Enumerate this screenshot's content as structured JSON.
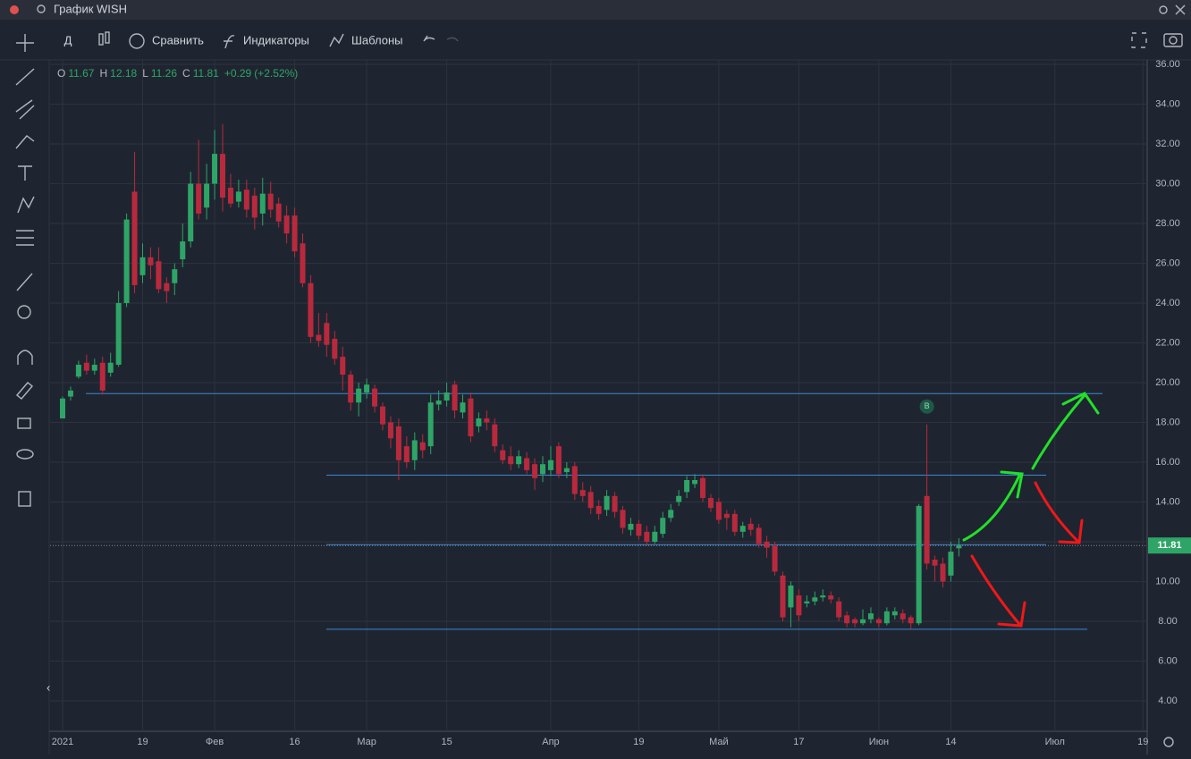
{
  "ui": {
    "window_title": "График WISH",
    "interval": "Д",
    "compare": "Сравнить",
    "indicators": "Индикаторы",
    "templates": "Шаблоны"
  },
  "legend": {
    "o": "O",
    "h": "H",
    "l": "L",
    "c": "C",
    "change": "+0.29",
    "change_pct": "(+2.52%)"
  },
  "chart_data": {
    "type": "candlestick",
    "categories": [
      "2021",
      null,
      null,
      null,
      null,
      null,
      null,
      null,
      null,
      null,
      "19",
      null,
      null,
      null,
      null,
      null,
      null,
      null,
      null,
      "Фев",
      null,
      null,
      null,
      null,
      null,
      null,
      null,
      null,
      null,
      "16",
      null,
      null,
      null,
      null,
      null,
      null,
      null,
      null,
      "Мар",
      null,
      null,
      null,
      null,
      null,
      null,
      null,
      null,
      null,
      "15",
      null,
      null,
      null,
      null,
      null,
      null,
      null,
      null,
      null,
      null,
      null,
      null,
      "Апр",
      null,
      null,
      null,
      null,
      null,
      null,
      null,
      null,
      null,
      null,
      "19",
      null,
      null,
      null,
      null,
      null,
      null,
      null,
      null,
      null,
      "Май",
      null,
      null,
      null,
      null,
      null,
      null,
      null,
      null,
      null,
      "17",
      null,
      null,
      null,
      null,
      null,
      null,
      null,
      null,
      null,
      "Июн",
      null,
      null,
      null,
      null,
      null,
      null,
      null,
      null,
      "14",
      null,
      null,
      null,
      null,
      null,
      null,
      null,
      null,
      null,
      null,
      null,
      null,
      "Июл",
      null,
      null,
      null,
      null,
      null,
      null,
      null,
      null,
      null,
      null,
      "19"
    ],
    "open": [
      18.2,
      19.3,
      20.3,
      21.0,
      20.6,
      21.0,
      20.5,
      20.9,
      24.0,
      29.6,
      25.4,
      26.3,
      26.1,
      25.0,
      25.0,
      26.2,
      27.1,
      30.0,
      28.8,
      30.0,
      31.5,
      29.8,
      29.1,
      29.7,
      29.4,
      28.5,
      29.5,
      29.0,
      28.4,
      28.4,
      27.0,
      25.0,
      22.4,
      23.0,
      22.2,
      21.3,
      20.4,
      19.0,
      19.5,
      19.7,
      18.8,
      18.0,
      17.8,
      16.8,
      16.1,
      17.0,
      16.8,
      18.9,
      19.1,
      19.9,
      18.5,
      19.2,
      17.8,
      18.2,
      17.9,
      16.6,
      16.3,
      15.9,
      16.2,
      15.9,
      15.4,
      15.6,
      16.8,
      15.5,
      15.8,
      14.6,
      14.5,
      13.8,
      13.6,
      14.3,
      13.6,
      12.6,
      12.9,
      12.5,
      12.0,
      12.4,
      13.2,
      14.0,
      14.5,
      14.9,
      15.2,
      14.2,
      14.0,
      13.4,
      13.4,
      12.5,
      12.9,
      12.7,
      12.0,
      11.8,
      10.3,
      8.7,
      9.3,
      8.9,
      9.0,
      9.2,
      9.3,
      9.0,
      8.3,
      8.1,
      7.9,
      8.1,
      8.1,
      7.9,
      8.3,
      8.4,
      8.2,
      7.9,
      14.3,
      11.1,
      10.9,
      10.3,
      11.67,
      null,
      null,
      null,
      null,
      null,
      null,
      null,
      null,
      null,
      null,
      null,
      null,
      null,
      null,
      null,
      null,
      null,
      null,
      null,
      null,
      null,
      null,
      null
    ],
    "high": [
      19.3,
      19.8,
      21.1,
      21.4,
      21.2,
      21.3,
      21.5,
      24.6,
      28.5,
      31.6,
      27.0,
      26.8,
      26.8,
      25.3,
      26.0,
      28.0,
      30.6,
      32.2,
      31.0,
      32.7,
      33.0,
      30.5,
      30.2,
      30.2,
      29.8,
      30.3,
      30.1,
      29.3,
      28.9,
      28.8,
      27.5,
      25.4,
      23.5,
      23.5,
      22.6,
      21.8,
      20.6,
      20.0,
      20.2,
      19.9,
      19.0,
      18.3,
      18.2,
      17.3,
      17.5,
      17.4,
      19.4,
      19.6,
      20.0,
      20.1,
      19.4,
      19.5,
      18.5,
      18.6,
      18.2,
      16.9,
      16.8,
      16.6,
      16.5,
      16.2,
      16.3,
      16.8,
      17.0,
      16.0,
      16.0,
      15.0,
      14.8,
      14.1,
      14.6,
      14.5,
      13.8,
      13.2,
      13.1,
      12.8,
      12.8,
      13.5,
      13.9,
      14.6,
      15.3,
      15.4,
      15.4,
      14.4,
      14.2,
      13.6,
      13.6,
      13.0,
      13.2,
      12.9,
      12.3,
      12.0,
      10.5,
      10.0,
      9.6,
      9.3,
      9.5,
      9.6,
      9.5,
      9.2,
      8.5,
      8.2,
      8.6,
      8.7,
      8.2,
      8.7,
      8.7,
      8.6,
      8.3,
      13.9,
      17.9,
      11.3,
      11.2,
      12.0,
      12.18,
      null,
      null,
      null,
      null,
      null,
      null,
      null,
      null,
      null,
      null,
      null,
      null,
      null,
      null,
      null,
      null,
      null,
      null,
      null,
      null,
      null,
      null,
      null
    ],
    "low": [
      18.2,
      19.1,
      20.2,
      20.4,
      20.4,
      19.4,
      20.3,
      20.8,
      23.8,
      24.5,
      25.0,
      25.2,
      24.5,
      24.0,
      24.4,
      25.8,
      26.8,
      28.2,
      28.2,
      29.2,
      28.6,
      28.8,
      28.8,
      28.3,
      27.7,
      27.9,
      28.3,
      27.8,
      27.0,
      26.3,
      24.8,
      22.0,
      21.8,
      21.3,
      20.9,
      19.6,
      18.6,
      18.3,
      19.2,
      18.5,
      17.6,
      16.7,
      15.1,
      15.7,
      15.6,
      16.2,
      16.4,
      18.6,
      18.8,
      18.2,
      18.2,
      17.0,
      17.5,
      17.6,
      16.5,
      15.9,
      15.6,
      15.7,
      15.4,
      14.6,
      15.0,
      15.3,
      15.2,
      15.2,
      14.1,
      14.0,
      13.4,
      13.1,
      13.3,
      13.2,
      12.4,
      12.3,
      12.1,
      11.8,
      11.9,
      12.2,
      13.0,
      13.8,
      14.2,
      14.7,
      14.0,
      13.5,
      12.9,
      12.6,
      12.3,
      12.2,
      12.3,
      11.7,
      11.2,
      10.3,
      8.0,
      7.7,
      8.0,
      8.7,
      8.8,
      9.0,
      8.9,
      8.0,
      7.7,
      7.7,
      7.8,
      7.9,
      7.7,
      7.8,
      8.1,
      7.9,
      7.6,
      7.8,
      10.6,
      10.0,
      9.7,
      10.0,
      11.26,
      null,
      null,
      null,
      null,
      null,
      null,
      null,
      null,
      null,
      null,
      null,
      null,
      null,
      null,
      null,
      null,
      null,
      null,
      null,
      null,
      null,
      null,
      null
    ],
    "close": [
      19.2,
      19.6,
      20.9,
      20.6,
      20.9,
      19.6,
      21.0,
      24.0,
      28.2,
      24.9,
      26.3,
      25.9,
      24.7,
      24.6,
      25.7,
      27.1,
      30.0,
      28.5,
      30.0,
      31.5,
      29.3,
      29.0,
      29.6,
      28.7,
      28.3,
      29.5,
      28.7,
      28.1,
      27.5,
      26.6,
      25.0,
      22.3,
      22.1,
      21.9,
      21.2,
      20.4,
      19.0,
      19.7,
      19.9,
      18.8,
      17.9,
      17.2,
      16.1,
      16.0,
      17.1,
      16.6,
      19.0,
      19.1,
      19.5,
      18.6,
      19.0,
      17.3,
      18.2,
      18.0,
      16.8,
      16.1,
      15.9,
      16.3,
      15.6,
      15.2,
      15.9,
      16.1,
      15.4,
      15.7,
      14.4,
      14.3,
      13.7,
      13.4,
      14.3,
      13.5,
      12.7,
      12.9,
      12.3,
      12.0,
      12.5,
      13.2,
      13.6,
      14.3,
      15.1,
      15.1,
      14.2,
      13.7,
      13.1,
      13.2,
      12.5,
      12.8,
      12.6,
      11.9,
      11.7,
      10.5,
      8.2,
      9.8,
      8.3,
      9.0,
      9.2,
      9.3,
      9.1,
      8.2,
      7.9,
      7.9,
      8.1,
      8.4,
      7.9,
      8.5,
      8.5,
      8.1,
      7.9,
      13.8,
      10.9,
      10.8,
      10.0,
      11.5,
      11.81,
      null,
      null,
      null,
      null,
      null,
      null,
      null,
      null,
      null,
      null,
      null,
      null,
      null,
      null,
      null,
      null,
      null,
      null,
      null,
      null,
      null,
      null,
      null
    ],
    "up_color": "#2ea567",
    "down_color": "#b9293d",
    "level_color": "#3d87d6",
    "levels": [
      19.45,
      15.35,
      11.85,
      7.6
    ],
    "marker": "B",
    "ylim": [
      2.47,
      36.18
    ],
    "yticks": [
      {
        "value": 4,
        "label": "4.00"
      },
      {
        "value": 6,
        "label": "6.00"
      },
      {
        "value": 8,
        "label": "8.00"
      },
      {
        "value": 10,
        "label": "10.00"
      },
      {
        "value": 12,
        "label": "12.00"
      },
      {
        "value": 14,
        "label": "14.00"
      },
      {
        "value": 16,
        "label": "16.00"
      },
      {
        "value": 18,
        "label": "18.00"
      },
      {
        "value": 20,
        "label": "20.00"
      },
      {
        "value": 22,
        "label": "22.00"
      },
      {
        "value": 24,
        "label": "24.00"
      },
      {
        "value": 26,
        "label": "26.00"
      },
      {
        "value": 28,
        "label": "28.00"
      },
      {
        "value": 30,
        "label": "30.00"
      },
      {
        "value": 32,
        "label": "32.00"
      },
      {
        "value": 34,
        "label": "34.00"
      },
      {
        "value": 36,
        "label": "36.00"
      }
    ],
    "grid": true
  }
}
